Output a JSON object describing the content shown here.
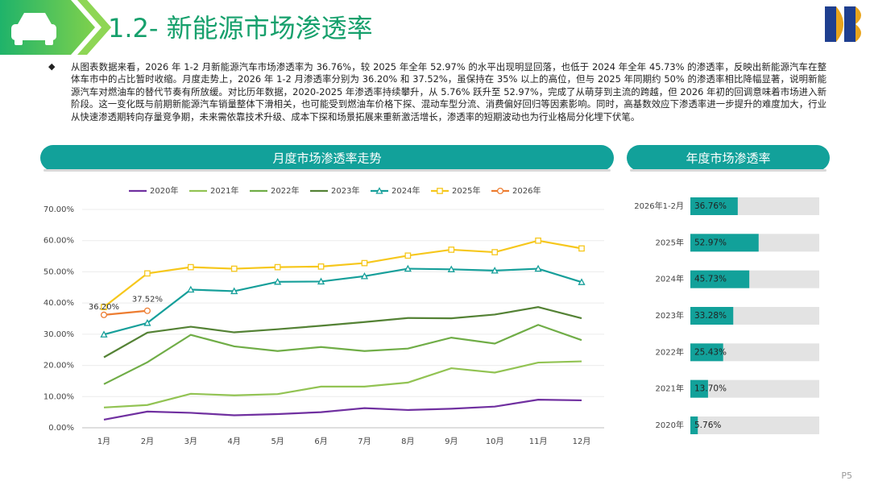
{
  "header": {
    "title": "1.2- 新能源市场渗透率"
  },
  "summary": "从图表数据来看，2026 年 1-2 月新能源汽车市场渗透率为 36.76%，较 2025 年全年 52.97% 的水平出现明显回落，也低于 2024 年全年 45.73% 的渗透率，反映出新能源汽车在整体车市中的占比暂时收缩。月度走势上，2026 年 1-2 月渗透率分别为 36.20% 和 37.52%，虽保持在 35% 以上的高位，但与 2025 年同期约 50% 的渗透率相比降幅显著，说明新能源汽车对燃油车的替代节奏有所放缓。对比历年数据，2020-2025 年渗透率持续攀升，从 5.76% 跃升至 52.97%，完成了从萌芽到主流的跨越，但 2026 年初的回调意味着市场进入新阶段。这一变化既与前期新能源汽车销量整体下滑相关，也可能受到燃油车价格下探、混动车型分流、消费偏好回归等因素影响。同时，高基数效应下渗透率进一步提升的难度加大，行业从快速渗透期转向存量竞争期，未来需依靠技术升级、成本下探和场景拓展来重新激活增长，渗透率的短期波动也为行业格局分化埋下伏笔。",
  "page_number": "P5",
  "chart_data": [
    {
      "type": "line",
      "title": "月度市场渗透率走势",
      "categories": [
        "1月",
        "2月",
        "3月",
        "4月",
        "5月",
        "6月",
        "7月",
        "8月",
        "9月",
        "10月",
        "11月",
        "12月"
      ],
      "ylim": [
        0,
        70
      ],
      "yticks": [
        {
          "value": 0,
          "label": "0.00%"
        },
        {
          "value": 10,
          "label": "10.00%"
        },
        {
          "value": 20,
          "label": "20.00%"
        },
        {
          "value": 30,
          "label": "30.00%"
        },
        {
          "value": 40,
          "label": "40.00%"
        },
        {
          "value": 50,
          "label": "50.00%"
        },
        {
          "value": 60,
          "label": "60.00%"
        },
        {
          "value": 70,
          "label": "70.00%"
        }
      ],
      "grid": true,
      "legend": "top",
      "series": [
        {
          "name": "2020年",
          "color": "#7030a0",
          "values": [
            2.6,
            5.2,
            4.8,
            4.0,
            4.4,
            5.0,
            6.3,
            5.7,
            6.1,
            6.8,
            9.0,
            8.8
          ]
        },
        {
          "name": "2021年",
          "color": "#92c353",
          "values": [
            6.5,
            7.3,
            10.9,
            10.4,
            10.8,
            13.2,
            13.2,
            14.5,
            19.1,
            17.7,
            20.9,
            21.3
          ]
        },
        {
          "name": "2022年",
          "color": "#70ad47",
          "values": [
            14.0,
            21.0,
            29.8,
            26.1,
            24.6,
            25.9,
            24.6,
            25.4,
            28.9,
            27.0,
            33.0,
            28.1
          ]
        },
        {
          "name": "2023年",
          "color": "#548235",
          "values": [
            22.6,
            30.5,
            32.4,
            30.6,
            31.6,
            32.7,
            33.9,
            35.2,
            35.1,
            36.3,
            38.7,
            35.1
          ]
        },
        {
          "name": "2024年",
          "color": "#169f9a",
          "marker": "triangle",
          "values": [
            29.9,
            33.6,
            44.3,
            43.8,
            46.8,
            46.9,
            48.6,
            51.0,
            50.8,
            50.4,
            51.0,
            46.7
          ]
        },
        {
          "name": "2025年",
          "color": "#f6c71c",
          "marker": "square",
          "values": [
            38.7,
            49.5,
            51.5,
            51.0,
            51.5,
            51.7,
            52.8,
            55.2,
            57.1,
            56.3,
            60.0,
            57.5
          ]
        },
        {
          "name": "2026年",
          "color": "#ed7d31",
          "marker": "circle",
          "values": [
            36.2,
            37.52,
            null,
            null,
            null,
            null,
            null,
            null,
            null,
            null,
            null,
            null
          ],
          "value_labels": [
            "36.20%",
            "37.52%",
            null,
            null,
            null,
            null,
            null,
            null,
            null,
            null,
            null,
            null
          ]
        }
      ]
    },
    {
      "type": "hbar",
      "title": "年度市场渗透率",
      "categories": [
        "2026年1-2月",
        "2025年",
        "2024年",
        "2023年",
        "2022年",
        "2021年",
        "2020年"
      ],
      "values": [
        36.76,
        52.97,
        45.73,
        33.28,
        25.43,
        13.7,
        5.76
      ],
      "value_labels": [
        "36.76%",
        "52.97%",
        "45.73%",
        "33.28%",
        "25.43%",
        "13.70%",
        "5.76%"
      ],
      "xlim": [
        0,
        100
      ],
      "color": "#12a19a",
      "track_color": "#e3e3e3"
    }
  ]
}
